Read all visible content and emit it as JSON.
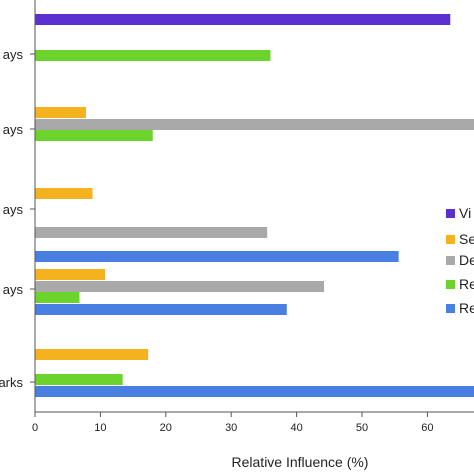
{
  "chart_data": {
    "type": "bar",
    "orientation": "horizontal",
    "xlabel": "Relative Influence (%)",
    "ylabel": "",
    "title": "",
    "xlim": [
      0,
      67
    ],
    "xticks": [
      0,
      10,
      20,
      30,
      40,
      50,
      60
    ],
    "grid": false,
    "legend_position": "right",
    "categories": [
      "ays",
      "ays",
      "ays",
      "ays",
      "arks"
    ],
    "series": [
      {
        "name": "Vi",
        "color": "#5b2fd0",
        "values": [
          63.5,
          null,
          null,
          null,
          null
        ]
      },
      {
        "name": "Se",
        "color": "#f5b21f",
        "values": [
          null,
          7.8,
          8.8,
          10.7,
          17.3
        ]
      },
      {
        "name": "De",
        "color": "#a9a9a9",
        "values": [
          null,
          68.0,
          35.5,
          44.2,
          null
        ]
      },
      {
        "name": "Re",
        "color": "#6bd32b",
        "values": [
          36.0,
          18.0,
          null,
          6.8,
          13.4
        ]
      },
      {
        "name": "Re",
        "color": "#4a7fe2",
        "values": [
          null,
          null,
          55.6,
          38.5,
          68.0
        ]
      }
    ]
  }
}
